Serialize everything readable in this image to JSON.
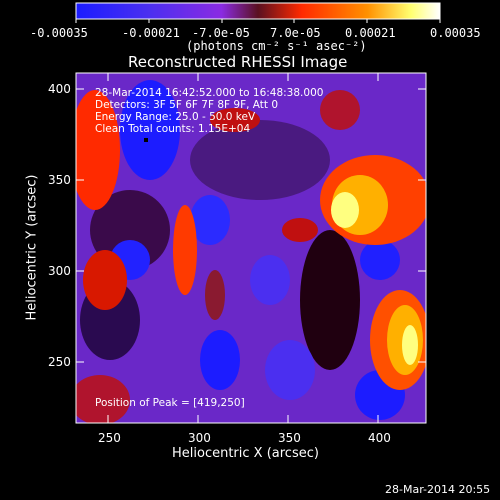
{
  "colorbar": {
    "tick_labels": [
      "-0.00035",
      "-0.00021",
      "-7.0e-05",
      "7.0e-05",
      "0.00021",
      "0.00035"
    ],
    "units": "(photons cm⁻² s⁻¹ asec⁻²)",
    "colors": [
      "#1b1cff",
      "#6b2fd6",
      "#8a2be2",
      "#b0142d",
      "#ff3a00",
      "#ff9a00",
      "#ffff80",
      "#ffffff"
    ]
  },
  "title": "Reconstructed RHESSI Image",
  "x_axis": {
    "label": "Heliocentric X (arcsec)",
    "ticks": [
      "250",
      "300",
      "350",
      "400"
    ]
  },
  "y_axis": {
    "label": "Heliocentric Y (arcsec)",
    "ticks": [
      "400",
      "350",
      "300",
      "250"
    ]
  },
  "info_lines": [
    "28-Mar-2014 16:42:52.000 to 16:48:38.000",
    "Detectors: 3F 5F 6F 7F 8F 9F, Att 0",
    "Energy Range: 25.0 - 50.0 keV",
    "Clean     Total counts: 1.15E+04"
  ],
  "peak": "Position of Peak = [419,250]",
  "timestamp": "28-Mar-2014 20:55"
}
